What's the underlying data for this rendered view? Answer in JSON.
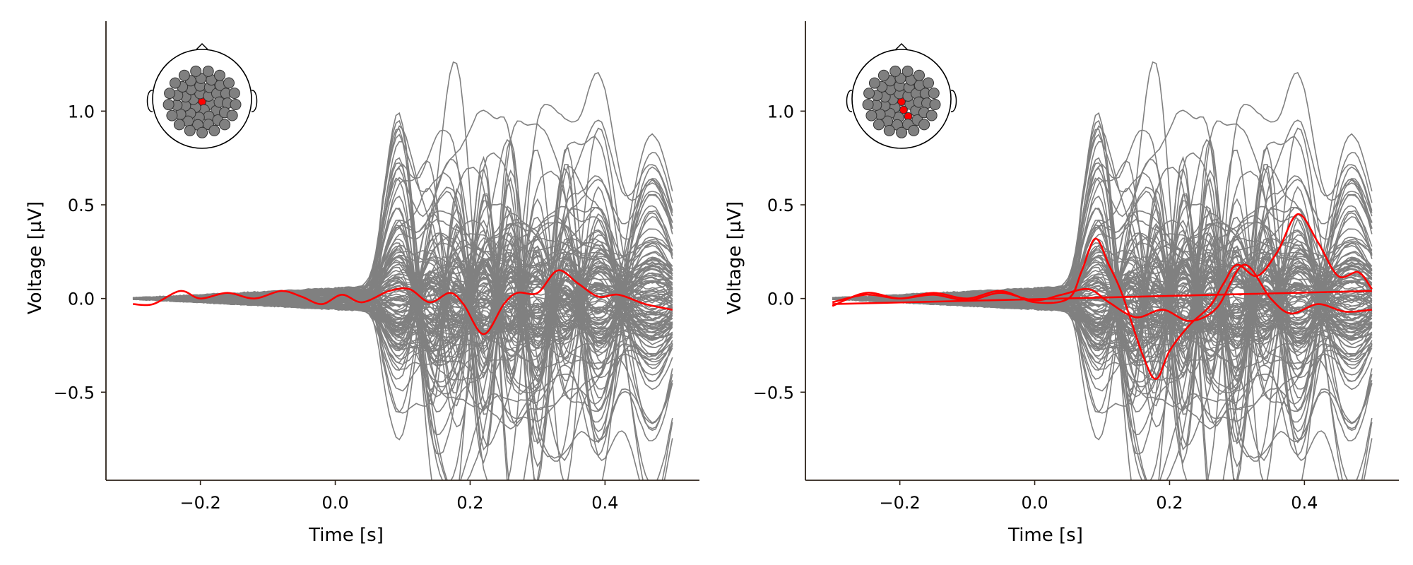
{
  "chart_data": [
    {
      "type": "line",
      "panel": "left",
      "xlabel": "Time [s]",
      "ylabel": "Voltage [µV]",
      "xlim": [
        -0.34,
        0.54
      ],
      "ylim": [
        -0.97,
        1.48
      ],
      "xticks": [
        -0.2,
        0.0,
        0.2,
        0.4
      ],
      "yticks": [
        -0.5,
        0.0,
        0.5,
        1.0
      ],
      "xtick_labels": [
        "−0.2",
        "0.0",
        "0.2",
        "0.4"
      ],
      "ytick_labels": [
        "−0.5",
        "0.0",
        "0.5",
        "1.0"
      ],
      "time_range": [
        -0.3,
        0.5
      ],
      "background_series": {
        "count": 128,
        "color": "#808080",
        "min_value": -0.87,
        "max_value": 1.37
      },
      "highlighted_series": [
        {
          "color": "#ff0000",
          "points": [
            [
              -0.3,
              -0.03
            ],
            [
              -0.27,
              -0.03
            ],
            [
              -0.23,
              0.04
            ],
            [
              -0.2,
              0.0
            ],
            [
              -0.16,
              0.03
            ],
            [
              -0.12,
              0.0
            ],
            [
              -0.08,
              0.04
            ],
            [
              -0.05,
              0.01
            ],
            [
              -0.02,
              -0.03
            ],
            [
              0.01,
              0.02
            ],
            [
              0.04,
              -0.02
            ],
            [
              0.08,
              0.04
            ],
            [
              0.11,
              0.05
            ],
            [
              0.14,
              -0.02
            ],
            [
              0.17,
              0.03
            ],
            [
              0.19,
              -0.03
            ],
            [
              0.22,
              -0.19
            ],
            [
              0.25,
              -0.03
            ],
            [
              0.27,
              0.03
            ],
            [
              0.3,
              0.03
            ],
            [
              0.33,
              0.15
            ],
            [
              0.36,
              0.08
            ],
            [
              0.39,
              0.01
            ],
            [
              0.42,
              0.02
            ],
            [
              0.46,
              -0.03
            ],
            [
              0.5,
              -0.06
            ]
          ]
        }
      ],
      "topomap": {
        "sensor_color": "#808080",
        "highlight_color": "#ff0000",
        "highlighted_count": 1
      }
    },
    {
      "type": "line",
      "panel": "right",
      "xlabel": "Time [s]",
      "ylabel": "Voltage [µV]",
      "xlim": [
        -0.34,
        0.54
      ],
      "ylim": [
        -0.97,
        1.48
      ],
      "xticks": [
        -0.2,
        0.0,
        0.2,
        0.4
      ],
      "yticks": [
        -0.5,
        0.0,
        0.5,
        1.0
      ],
      "xtick_labels": [
        "−0.2",
        "0.0",
        "0.2",
        "0.4"
      ],
      "ytick_labels": [
        "−0.5",
        "0.0",
        "0.5",
        "1.0"
      ],
      "time_range": [
        -0.3,
        0.5
      ],
      "background_series": {
        "count": 128,
        "color": "#808080",
        "min_value": -0.87,
        "max_value": 1.37
      },
      "highlighted_series": [
        {
          "color": "#ff0000",
          "points": [
            [
              -0.3,
              -0.03
            ],
            [
              0.5,
              0.04
            ]
          ]
        },
        {
          "color": "#ff0000",
          "points": [
            [
              -0.3,
              -0.04
            ],
            [
              -0.25,
              0.03
            ],
            [
              -0.2,
              0.0
            ],
            [
              -0.15,
              0.03
            ],
            [
              -0.1,
              0.0
            ],
            [
              -0.05,
              0.04
            ],
            [
              0.0,
              -0.02
            ],
            [
              0.05,
              0.0
            ],
            [
              0.07,
              0.15
            ],
            [
              0.09,
              0.32
            ],
            [
              0.11,
              0.18
            ],
            [
              0.13,
              0.02
            ],
            [
              0.16,
              -0.3
            ],
            [
              0.18,
              -0.43
            ],
            [
              0.2,
              -0.28
            ],
            [
              0.23,
              -0.14
            ],
            [
              0.26,
              -0.04
            ],
            [
              0.28,
              0.08
            ],
            [
              0.3,
              0.18
            ],
            [
              0.33,
              0.12
            ],
            [
              0.36,
              0.25
            ],
            [
              0.39,
              0.45
            ],
            [
              0.42,
              0.3
            ],
            [
              0.45,
              0.12
            ],
            [
              0.48,
              0.14
            ],
            [
              0.5,
              0.05
            ]
          ]
        },
        {
          "color": "#ff0000",
          "points": [
            [
              -0.3,
              -0.02
            ],
            [
              -0.25,
              0.02
            ],
            [
              -0.2,
              0.0
            ],
            [
              -0.15,
              0.02
            ],
            [
              -0.1,
              -0.01
            ],
            [
              -0.05,
              0.03
            ],
            [
              0.0,
              -0.01
            ],
            [
              0.04,
              0.02
            ],
            [
              0.08,
              0.05
            ],
            [
              0.11,
              -0.02
            ],
            [
              0.15,
              -0.1
            ],
            [
              0.19,
              -0.06
            ],
            [
              0.23,
              -0.12
            ],
            [
              0.27,
              -0.05
            ],
            [
              0.31,
              0.18
            ],
            [
              0.35,
              0.0
            ],
            [
              0.38,
              -0.08
            ],
            [
              0.42,
              -0.03
            ],
            [
              0.46,
              -0.07
            ],
            [
              0.5,
              -0.06
            ]
          ]
        }
      ],
      "topomap": {
        "sensor_color": "#808080",
        "highlight_color": "#ff0000",
        "highlighted_count": 3
      }
    }
  ]
}
